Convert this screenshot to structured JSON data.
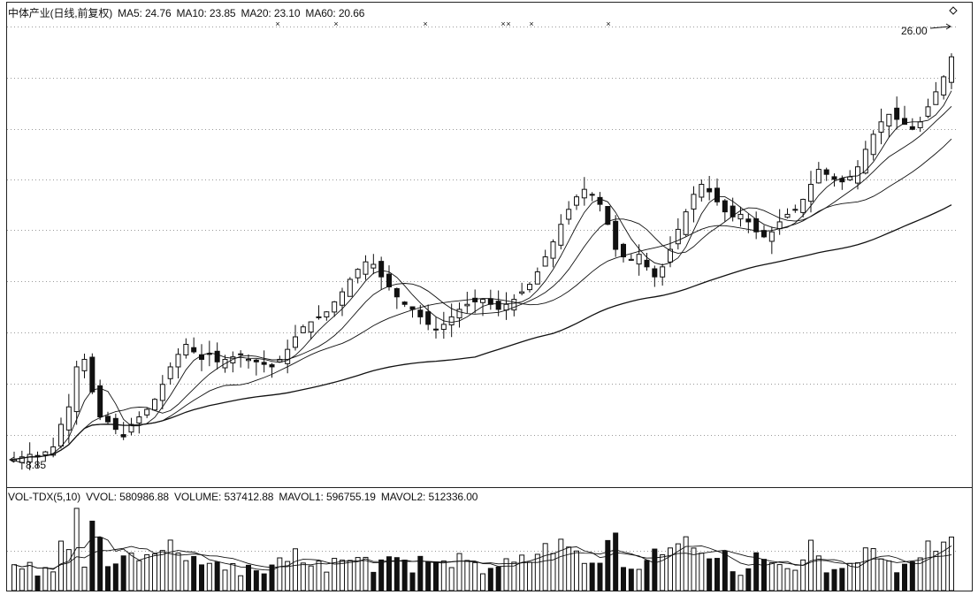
{
  "price_panel": {
    "title": "中体产业(日线,前复权)",
    "ma5": "MA5: 24.76",
    "ma10": "MA10: 23.85",
    "ma20": "MA20: 23.10",
    "ma60": "MA60: 20.66",
    "high_label": "26.00",
    "low_label": "8.85"
  },
  "volume_panel": {
    "indicator": "VOL-TDX(5,10)",
    "vvol": "VVOL: 580986.88",
    "volume": "VOLUME: 537412.88",
    "mavol1": "MAVOL1: 596755.19",
    "mavol2": "MAVOL2: 512336.00"
  },
  "chart_data": {
    "type": "candlestick",
    "price_range": [
      8.85,
      26.0
    ],
    "grid": "dotted horizontal",
    "colors": {
      "up": "#ffffff",
      "down": "#111111",
      "line": "#111111",
      "grid": "#9a9a9a"
    },
    "close": [
      8.9,
      9.0,
      9.1,
      9.0,
      9.2,
      9.4,
      10.3,
      11.0,
      12.6,
      12.9,
      11.6,
      10.6,
      10.4,
      10.1,
      9.8,
      10.3,
      10.6,
      10.9,
      11.3,
      11.9,
      12.6,
      13.1,
      13.5,
      13.2,
      12.9,
      13.1,
      12.8,
      12.9,
      13.0,
      13.1,
      12.9,
      12.8,
      12.7,
      12.6,
      12.9,
      13.3,
      13.8,
      14.2,
      14.4,
      14.6,
      14.8,
      15.2,
      15.6,
      16.1,
      16.5,
      16.8,
      16.7,
      16.2,
      15.8,
      15.4,
      15.1,
      14.9,
      14.6,
      14.3,
      14.1,
      14.3,
      14.6,
      14.9,
      15.1,
      15.2,
      15.3,
      15.1,
      14.9,
      15.1,
      15.3,
      15.6,
      15.9,
      16.4,
      17.0,
      17.6,
      18.3,
      18.9,
      19.4,
      19.7,
      19.5,
      19.1,
      18.3,
      17.3,
      17.0,
      16.9,
      17.1,
      16.6,
      16.2,
      16.6,
      17.3,
      18.1,
      18.8,
      19.5,
      19.9,
      19.6,
      19.2,
      18.8,
      18.6,
      18.7,
      18.4,
      18.0,
      17.8,
      18.0,
      18.4,
      18.7,
      18.9,
      19.3,
      19.9,
      20.5,
      20.3,
      20.1,
      20.0,
      20.2,
      20.6,
      21.3,
      21.9,
      22.4,
      22.7,
      22.5,
      22.3,
      22.1,
      22.4,
      23.0,
      23.6,
      24.2,
      25.0
    ]
  }
}
